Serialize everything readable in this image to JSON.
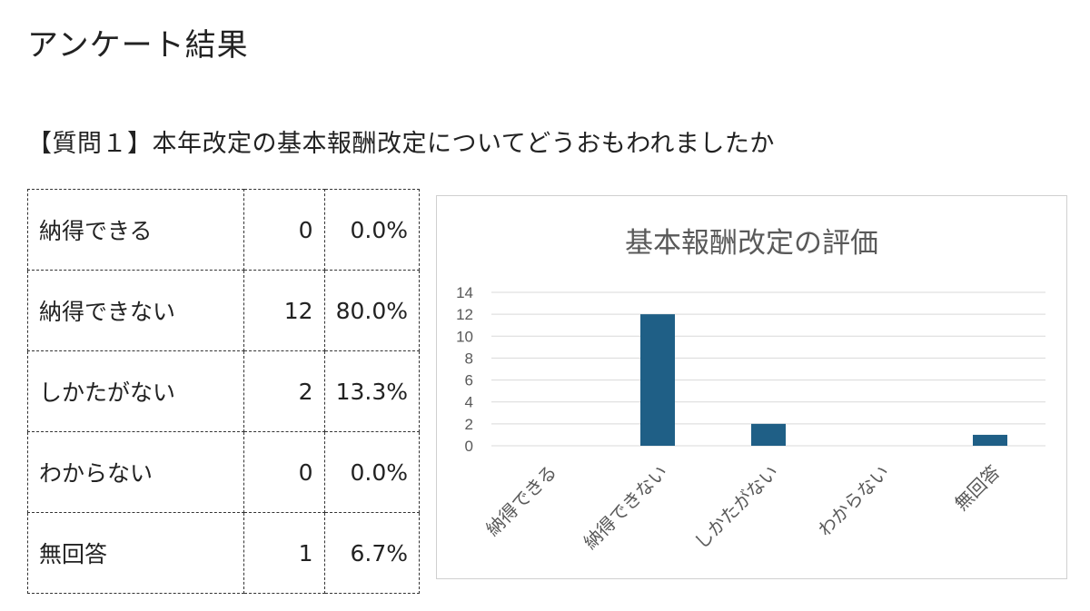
{
  "page": {
    "title": "アンケート結果",
    "question": "【質問１】本年改定の基本報酬改定についてどうおもわれましたか"
  },
  "table": {
    "rows": [
      {
        "label": "納得できる",
        "count": "0",
        "percent": "0.0%"
      },
      {
        "label": "納得できない",
        "count": "12",
        "percent": "80.0%"
      },
      {
        "label": "しかたがない",
        "count": "2",
        "percent": "13.3%"
      },
      {
        "label": "わからない",
        "count": "0",
        "percent": "0.0%"
      },
      {
        "label": "無回答",
        "count": "1",
        "percent": "6.7%"
      }
    ]
  },
  "chart_data": {
    "type": "bar",
    "title": "基本報酬改定の評価",
    "categories": [
      "納得できる",
      "納得できない",
      "しかたがない",
      "わからない",
      "無回答"
    ],
    "values": [
      0,
      12,
      2,
      0,
      1
    ],
    "ylim": [
      0,
      14
    ],
    "yticks": [
      0,
      2,
      4,
      6,
      8,
      10,
      12,
      14
    ],
    "grid": true,
    "legend": "none",
    "colors": {
      "bar": "#1f5f86",
      "grid": "#d9d9d9",
      "axis_text": "#595959"
    }
  }
}
